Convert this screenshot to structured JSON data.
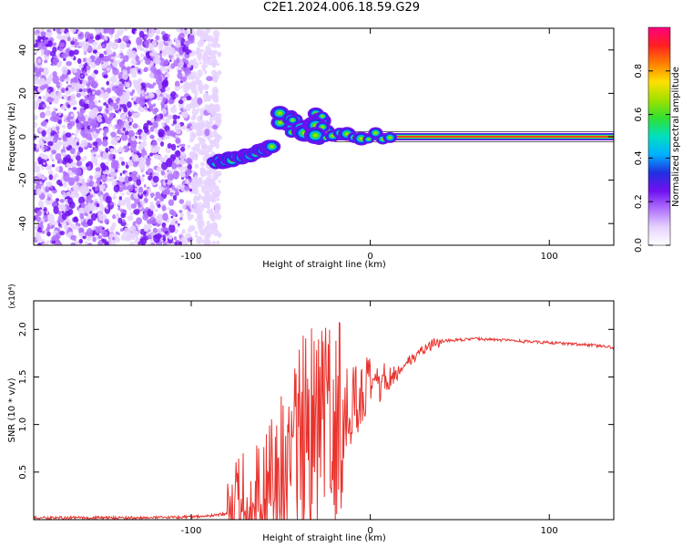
{
  "title": "C2E1.2024.006.18.59.G29",
  "colors": {
    "snr_line": "#e8332e",
    "colormap": [
      "#ffffff",
      "#e6d2ff",
      "#b070ff",
      "#7010f0",
      "#2030e0",
      "#00b0ff",
      "#00e0c0",
      "#30e030",
      "#a0e000",
      "#ffe000",
      "#ff8000",
      "#ff2020",
      "#ff0080"
    ]
  },
  "chart_data": [
    {
      "type": "heatmap",
      "title": "C2E1.2024.006.18.59.G29",
      "xlabel": "Height of straight line (km)",
      "ylabel": "Frequency (Hz)",
      "xlim": [
        -188,
        136
      ],
      "ylim": [
        -50,
        50
      ],
      "xticks": [
        -100,
        0,
        100
      ],
      "yticks": [
        -40,
        -20,
        0,
        20,
        40
      ],
      "colorbar": {
        "label": "Normalized spectral amplitude",
        "range": [
          0,
          1
        ],
        "ticks": [
          "0.0",
          "0.2",
          "0.4",
          "0.6",
          "0.8"
        ]
      },
      "features": [
        {
          "name": "noise_region",
          "x_range": [
            -188,
            -84
          ],
          "freq_range": [
            -50,
            50
          ]
        },
        {
          "name": "rising_streak",
          "points": [
            [
              -88,
              -12
            ],
            [
              -70,
              -9
            ],
            [
              -55,
              -4
            ]
          ]
        },
        {
          "name": "cluster",
          "points": [
            [
              -48,
              10
            ],
            [
              -40,
              5
            ],
            [
              -30,
              8
            ],
            [
              -28,
              2
            ]
          ]
        },
        {
          "name": "steady_line",
          "x_range": [
            -20,
            136
          ],
          "freq": 0
        }
      ]
    },
    {
      "type": "line",
      "xlabel": "Height of straight line (km)",
      "ylabel": "SNR (10 * v/v)",
      "multiplier": "(x10⁴)",
      "xlim": [
        -188,
        136
      ],
      "ylim": [
        0,
        2.3
      ],
      "xticks": [
        -100,
        0,
        100
      ],
      "yticks": [
        "0.5",
        "1.0",
        "1.5",
        "2.0"
      ],
      "series": [
        {
          "x": [
            -188,
            -160,
            -140,
            -120,
            -100,
            -90,
            -80,
            -75,
            -70,
            -65,
            -60,
            -55,
            -50,
            -45,
            -40,
            -35,
            -30,
            -25,
            -20,
            -15,
            -10,
            -5,
            0,
            5,
            10,
            15,
            20,
            25,
            30,
            35,
            40,
            50,
            60,
            70,
            80,
            90,
            100,
            110,
            120,
            130,
            136
          ],
          "values": [
            0.02,
            0.02,
            0.02,
            0.02,
            0.03,
            0.04,
            0.06,
            0.08,
            0.12,
            0.2,
            0.3,
            0.42,
            0.6,
            0.8,
            0.9,
            1.0,
            1.05,
            1.1,
            1.15,
            1.2,
            1.28,
            1.35,
            1.42,
            1.45,
            1.5,
            1.55,
            1.64,
            1.72,
            1.8,
            1.85,
            1.88,
            1.89,
            1.9,
            1.89,
            1.88,
            1.87,
            1.86,
            1.85,
            1.84,
            1.82,
            1.81
          ]
        }
      ]
    }
  ]
}
